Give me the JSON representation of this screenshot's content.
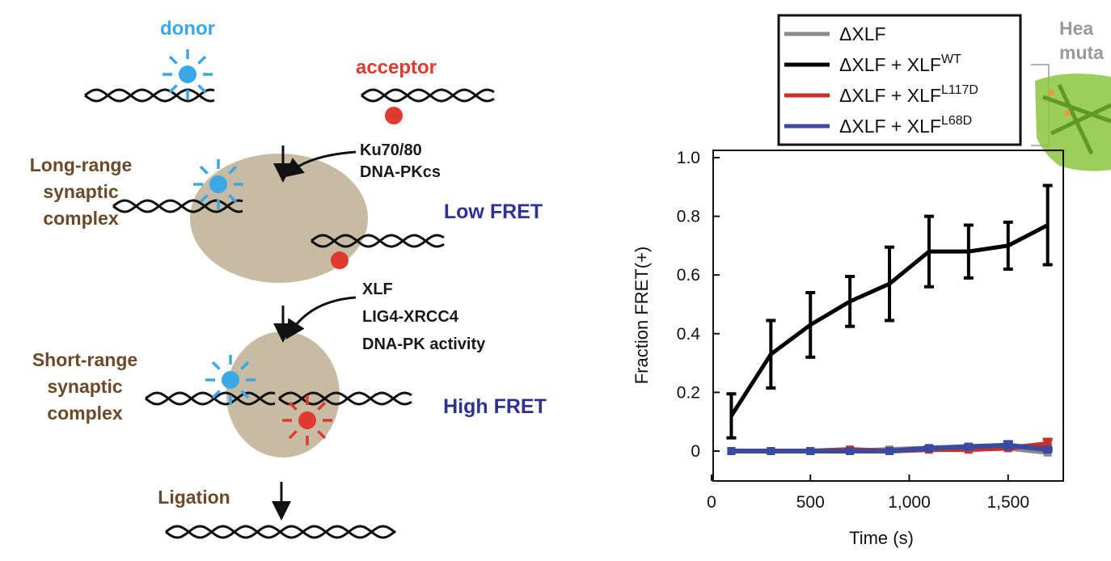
{
  "diagram": {
    "donor_label": "donor",
    "acceptor_label": "acceptor",
    "step1_factors": [
      "Ku70/80",
      "DNA-PKcs"
    ],
    "long_range_label": [
      "Long-range",
      "synaptic",
      "complex"
    ],
    "low_fret_label": "Low FRET",
    "step2_factors": [
      "XLF",
      "LIG4-XRCC4",
      "DNA-PK activity"
    ],
    "short_range_label": [
      "Short-range",
      "synaptic",
      "complex"
    ],
    "high_fret_label": "High FRET",
    "ligation_label": "Ligation",
    "inset_text": [
      "Hea",
      "muta"
    ],
    "colors": {
      "donor": "#3aa7e6",
      "acceptor": "#e03a2e",
      "complex": "#c7bca3",
      "label_brown": "#6b4a2a",
      "fret_label": "#2e3190"
    }
  },
  "chart_data": {
    "type": "line",
    "xlabel": "Time (s)",
    "ylabel": "Fraction FRET(+)",
    "xlim": [
      0,
      1780
    ],
    "ylim": [
      -0.1,
      1.03
    ],
    "xticks": [
      0,
      500,
      1000,
      1500
    ],
    "xtick_labels": [
      "0",
      "500",
      "1,000",
      "1,500"
    ],
    "yticks": [
      0,
      0.2,
      0.4,
      0.6,
      0.8,
      1.0
    ],
    "ytick_labels": [
      "0",
      "0.2",
      "0.4",
      "0.6",
      "0.8",
      "1.0"
    ],
    "grid": false,
    "legend_placement": "top",
    "x": [
      100,
      300,
      500,
      700,
      900,
      1100,
      1300,
      1500,
      1700
    ],
    "series": [
      {
        "name": "ΔXLF",
        "sup": "",
        "color": "#8a8a8a",
        "values": [
          0,
          0,
          0,
          0,
          0.005,
          0.01,
          0.01,
          0.01,
          -0.005
        ],
        "err": [
          0,
          0,
          0,
          0,
          0,
          0,
          0,
          0,
          0
        ]
      },
      {
        "name": "ΔXLF + XLF",
        "sup": "WT",
        "color": "#000000",
        "values": [
          0.12,
          0.33,
          0.43,
          0.51,
          0.57,
          0.68,
          0.68,
          0.7,
          0.77
        ],
        "err": [
          0.075,
          0.115,
          0.11,
          0.085,
          0.125,
          0.12,
          0.09,
          0.08,
          0.135
        ]
      },
      {
        "name": "ΔXLF + XLF",
        "sup": "L117D",
        "color": "#c8302a",
        "values": [
          0,
          0,
          0,
          0.005,
          0,
          0.005,
          0.005,
          0.01,
          0.025
        ],
        "err": [
          0,
          0,
          0,
          0,
          0,
          0,
          0,
          0,
          0.015
        ]
      },
      {
        "name": "ΔXLF + XLF",
        "sup": "L68D",
        "color": "#3a4aa0",
        "values": [
          0,
          0,
          0,
          0,
          0,
          0.01,
          0.015,
          0.02,
          0.005
        ],
        "err": [
          0,
          0,
          0,
          0,
          0,
          0.005,
          0.005,
          0.012,
          0.005
        ]
      }
    ]
  }
}
